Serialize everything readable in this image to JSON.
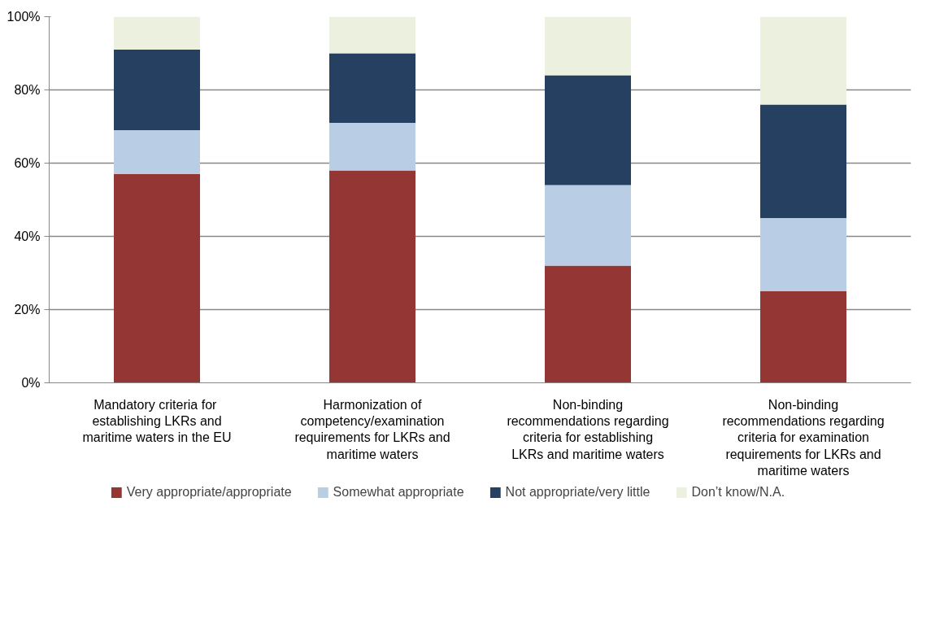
{
  "chart_data": {
    "type": "bar",
    "stacked": true,
    "categories": [
      "Mandatory criteria  for establishing LKRs and maritime waters in the EU",
      "Harmonization of competency/examination requirements for LKRs and maritime waters",
      "Non-binding recommendations regarding criteria for establishing LKRs and maritime waters",
      "Non-binding recommendations regarding criteria for examination requirements for LKRs and maritime waters"
    ],
    "series": [
      {
        "name": "Very appropriate/appropriate",
        "color": "#943634",
        "values": [
          57,
          58,
          32,
          25
        ]
      },
      {
        "name": "Somewhat appropriate",
        "color": "#b9cde5",
        "values": [
          12,
          13,
          22,
          20
        ]
      },
      {
        "name": "Not appropriate/very little",
        "color": "#254061",
        "values": [
          22,
          19,
          30,
          31
        ]
      },
      {
        "name": "Don’t know/N.A.",
        "color": "#ebf1de",
        "values": [
          9,
          10,
          16,
          24
        ]
      }
    ],
    "ylim": [
      0,
      100
    ],
    "yticks": [
      {
        "value": 0,
        "label": "0%"
      },
      {
        "value": 20,
        "label": "20%"
      },
      {
        "value": 40,
        "label": "40%"
      },
      {
        "value": 60,
        "label": "60%"
      },
      {
        "value": 80,
        "label": "80%"
      },
      {
        "value": 100,
        "label": "100%"
      }
    ],
    "grid": "y",
    "legend": "bottom"
  }
}
